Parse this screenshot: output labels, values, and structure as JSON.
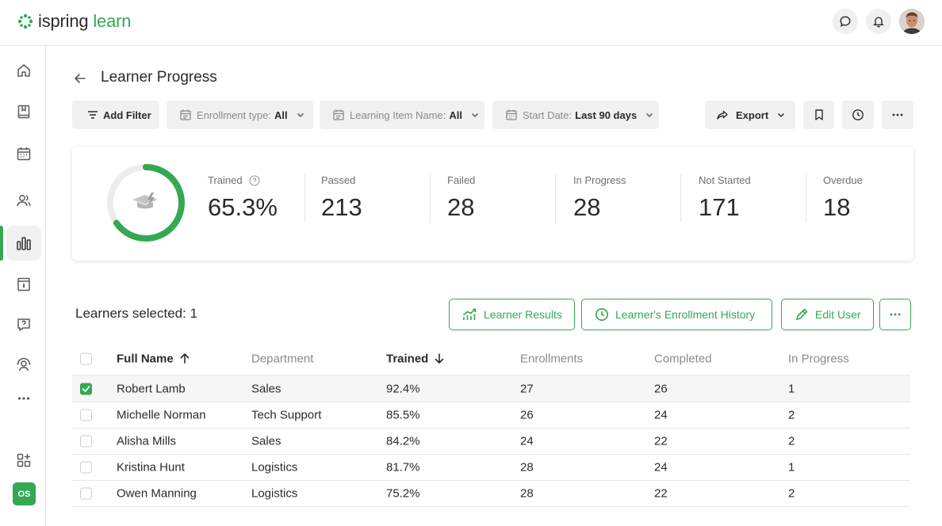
{
  "app": {
    "logo_part1": "ispring",
    "logo_part2": "learn",
    "brand_color": "#34a853",
    "user_initials": "OS"
  },
  "topbar": {
    "icons": [
      "chat-icon",
      "bell-icon",
      "user-avatar"
    ]
  },
  "rail": {
    "items": [
      "home-icon",
      "book-icon",
      "calendar-icon",
      "users-icon",
      "reports-icon",
      "catalog-icon",
      "question-icon",
      "supervisor-icon",
      "more-icon"
    ],
    "active_item": "reports-icon",
    "bottom_items": [
      "apps-add-icon"
    ]
  },
  "header": {
    "title": "Learner Progress"
  },
  "filters": {
    "add_filter": "Add Filter",
    "enrollment_type_label": "Enrollment type:",
    "enrollment_type_value": "All",
    "learning_item_label": "Learning Item Name:",
    "learning_item_value": "All",
    "start_date_label": "Start Date:",
    "start_date_value": "Last 90 days",
    "export": "Export"
  },
  "stats": {
    "trained_label": "Trained",
    "trained_value": "65.3%",
    "trained_fraction": 0.653,
    "passed_label": "Passed",
    "passed_value": "213",
    "failed_label": "Failed",
    "failed_value": "28",
    "in_progress_label": "In Progress",
    "in_progress_value": "28",
    "not_started_label": "Not Started",
    "not_started_value": "171",
    "overdue_label": "Overdue",
    "overdue_value": "18"
  },
  "selection": {
    "label": "Learners selected: 1",
    "learner_results": "Learner Results",
    "enrollment_history": "Learner's Enrollment History",
    "edit_user": "Edit User"
  },
  "table": {
    "columns": {
      "full_name": "Full Name",
      "department": "Department",
      "trained": "Trained",
      "enrollments": "Enrollments",
      "completed": "Completed",
      "in_progress": "In Progress"
    },
    "rows": [
      {
        "selected": true,
        "name": "Robert Lamb",
        "department": "Sales",
        "trained": "92.4%",
        "enrollments": "27",
        "completed": "26",
        "in_progress": "1"
      },
      {
        "selected": false,
        "name": "Michelle Norman",
        "department": "Tech Support",
        "trained": "85.5%",
        "enrollments": "26",
        "completed": "24",
        "in_progress": "2"
      },
      {
        "selected": false,
        "name": "Alisha Mills",
        "department": "Sales",
        "trained": "84.2%",
        "enrollments": "24",
        "completed": "22",
        "in_progress": "2"
      },
      {
        "selected": false,
        "name": "Kristina Hunt",
        "department": "Logistics",
        "trained": "81.7%",
        "enrollments": "28",
        "completed": "24",
        "in_progress": "1"
      },
      {
        "selected": false,
        "name": "Owen Manning",
        "department": "Logistics",
        "trained": "75.2%",
        "enrollments": "28",
        "completed": "22",
        "in_progress": "2"
      }
    ]
  }
}
